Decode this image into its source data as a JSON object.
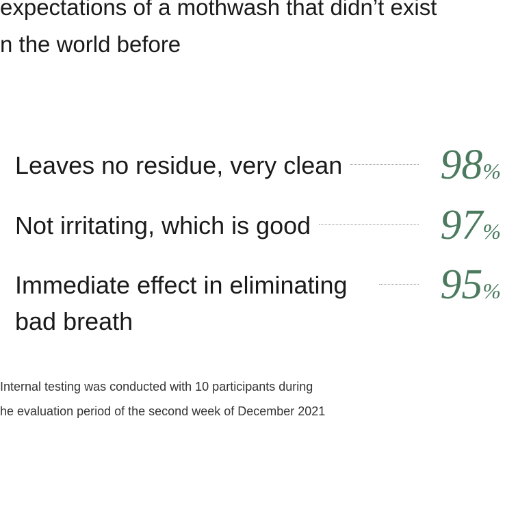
{
  "heading": {
    "lines": [
      "expectations of a mothwash that didn’t exist",
      "n the world before"
    ]
  },
  "results": [
    {
      "label": "Leaves no residue, very clean",
      "value": 98,
      "unit": "%"
    },
    {
      "label": "Not irritating, which is good",
      "value": 97,
      "unit": "%"
    },
    {
      "label": "Immediate effect in eliminating bad breath",
      "value": 95,
      "unit": "%"
    }
  ],
  "footnote": {
    "lines": [
      "Internal testing was conducted with 10 participants during",
      "he evaluation period of the second week of December 2021"
    ]
  }
}
